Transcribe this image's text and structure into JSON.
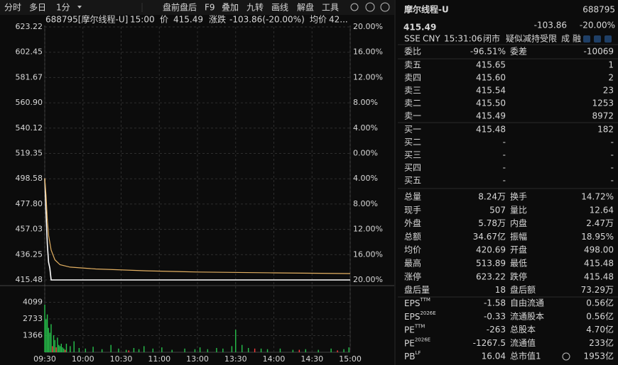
{
  "toolbar": {
    "left": [
      "分时",
      "多日",
      "1分"
    ],
    "right": [
      "盘前盘后",
      "F9",
      "叠加",
      "九转",
      "画线",
      "解盘",
      "工具"
    ]
  },
  "chart_header": {
    "symbol": "688795[摩尔线程-U]",
    "time": "15:00",
    "price_label": "价",
    "price": "415.49",
    "change_label": "涨跌",
    "change": "-103.86(-20.00%)",
    "avg_label": "均价",
    "avg": "42..."
  },
  "colors": {
    "up": "#ff3b3b",
    "down": "#27c24c",
    "neutral": "#dcdcdc",
    "muted": "#9a9a9a",
    "accent": "#3a9cf0"
  },
  "chart_data": {
    "type": "line",
    "grid": true,
    "xlim": [
      0,
      240
    ],
    "xticks": [
      {
        "value": 0,
        "label": "09:30"
      },
      {
        "value": 30,
        "label": "10:00"
      },
      {
        "value": 60,
        "label": "10:30"
      },
      {
        "value": 90,
        "label": "11:00"
      },
      {
        "value": 120,
        "label": "13:00"
      },
      {
        "value": 150,
        "label": "13:30"
      },
      {
        "value": 180,
        "label": "14:00"
      },
      {
        "value": 210,
        "label": "14:30"
      },
      {
        "value": 240,
        "label": "15:00"
      }
    ],
    "ylim": [
      415.48,
      623.22
    ],
    "yticks": [
      623.22,
      602.45,
      581.67,
      {
        "value": 560.9,
        "label": "560.90"
      },
      540.12,
      519.35,
      498.58,
      {
        "value": 477.8,
        "label": "477.80"
      },
      457.03,
      436.25,
      415.48
    ],
    "y2lim": [
      -20,
      20
    ],
    "y2ticks": [
      {
        "value": 20,
        "label": "20.00%"
      },
      {
        "value": 16,
        "label": "16.00%"
      },
      {
        "value": 12,
        "label": "12.00%"
      },
      {
        "value": 8,
        "label": "8.00%"
      },
      {
        "value": 4,
        "label": "4.00%"
      },
      {
        "value": 0,
        "label": "0.00%"
      },
      {
        "value": -4,
        "label": "4.00%"
      },
      {
        "value": -8,
        "label": "8.00%"
      },
      {
        "value": -12,
        "label": "12.00%"
      },
      {
        "value": -16,
        "label": "16.00%"
      },
      {
        "value": -20,
        "label": "20.00%"
      }
    ],
    "series": [
      {
        "color": "#ffffff",
        "x": [
          0,
          1,
          2,
          3,
          4,
          5,
          240
        ],
        "values": [
          499,
          470,
          445,
          430,
          425,
          415.49,
          415.49
        ]
      },
      {
        "color": "#e3b062",
        "x": [
          0,
          1,
          2,
          3,
          5,
          8,
          12,
          20,
          40,
          80,
          120,
          180,
          240
        ],
        "values": [
          499,
          485,
          465,
          452,
          440,
          432,
          428,
          426,
          424.5,
          423,
          422,
          421.3,
          420.69
        ]
      }
    ],
    "volume_lim": [
      0,
      5465
    ],
    "volume_ticks": [
      1366,
      2733,
      4099
    ],
    "volume_series": [
      {
        "color": "#27c24c",
        "x": [
          0,
          1,
          2,
          3,
          4,
          5,
          7,
          8,
          10,
          11,
          12,
          13,
          14,
          15,
          17,
          20,
          23,
          27,
          32,
          38,
          45,
          52,
          58,
          64,
          70,
          74,
          78,
          85,
          92,
          100,
          110,
          118,
          122,
          128,
          135,
          140,
          147,
          150,
          155,
          160,
          170,
          175,
          185,
          195,
          205,
          215,
          225,
          235,
          239
        ],
        "values": [
          3900,
          2700,
          3100,
          2000,
          1600,
          2300,
          1400,
          1000,
          1200,
          600,
          500,
          700,
          400,
          300,
          700,
          500,
          900,
          350,
          300,
          450,
          250,
          600,
          300,
          200,
          350,
          250,
          500,
          300,
          400,
          200,
          300,
          250,
          400,
          250,
          350,
          300,
          500,
          1850,
          600,
          350,
          300,
          250,
          300,
          200,
          250,
          200,
          300,
          250,
          400
        ]
      },
      {
        "color": "#ff3b3b",
        "x": [
          6,
          9,
          16,
          66,
          165,
          200,
          230
        ],
        "values": [
          500,
          400,
          200,
          150,
          300,
          200,
          150
        ]
      }
    ]
  },
  "quote": {
    "name": "摩尔线程-U",
    "code": "688795",
    "price": "415.49",
    "change": "-103.86",
    "change_pct": "-20.00%",
    "market": "SSE",
    "currency": "CNY",
    "time": "15:31:06",
    "status": "闭市",
    "flag": "疑似减持受限",
    "tags": [
      "成",
      "融"
    ]
  },
  "order_ratio": {
    "label": "委比",
    "value": "-96.51%",
    "label2": "委差",
    "value2": "-10069"
  },
  "asks": [
    {
      "label": "卖五",
      "price": "415.65",
      "volume": "1"
    },
    {
      "label": "卖四",
      "price": "415.60",
      "volume": "2"
    },
    {
      "label": "卖三",
      "price": "415.54",
      "volume": "23"
    },
    {
      "label": "卖二",
      "price": "415.50",
      "volume": "1253"
    },
    {
      "label": "卖一",
      "price": "415.49",
      "volume": "8972"
    }
  ],
  "bids": [
    {
      "label": "买一",
      "price": "415.48",
      "volume": "182"
    },
    {
      "label": "买二",
      "price": "-",
      "volume": "-"
    },
    {
      "label": "买三",
      "price": "-",
      "volume": "-"
    },
    {
      "label": "买四",
      "price": "-",
      "volume": "-"
    },
    {
      "label": "买五",
      "price": "-",
      "volume": "-"
    }
  ],
  "stats": [
    {
      "label": "总量",
      "value": "8.24万",
      "tone": "neutral",
      "label2": "换手",
      "value2": "14.72%",
      "tone2": "neutral"
    },
    {
      "label": "现手",
      "value": "507",
      "tone": "neutral",
      "label2": "量比",
      "value2": "12.64",
      "tone2": "neutral"
    },
    {
      "label": "外盘",
      "value": "5.78万",
      "tone": "up",
      "label2": "内盘",
      "value2": "2.47万",
      "tone2": "down"
    },
    {
      "label": "总额",
      "value": "34.67亿",
      "tone": "neutral",
      "label2": "振幅",
      "value2": "18.95%",
      "tone2": "neutral"
    },
    {
      "label": "均价",
      "value": "420.69",
      "tone": "down",
      "label2": "开盘",
      "value2": "498.00",
      "tone2": "down"
    },
    {
      "label": "最高",
      "value": "513.89",
      "tone": "down",
      "label2": "最低",
      "value2": "415.48",
      "tone2": "down"
    },
    {
      "label": "涨停",
      "value": "623.22",
      "tone": "up",
      "label2": "跌停",
      "value2": "415.48",
      "tone2": "down"
    },
    {
      "label": "盘后量",
      "value": "18",
      "tone": "neutral",
      "label2": "盘后额",
      "value2": "73.29万",
      "tone2": "neutral"
    }
  ],
  "fundamentals": [
    {
      "label": "EPS",
      "sup": "TTM",
      "value": "-1.58",
      "label2": "自由流通",
      "value2": "0.56亿"
    },
    {
      "label": "EPS",
      "sup": "2026E",
      "value": "-0.33",
      "label2": "流通股本",
      "value2": "0.56亿"
    },
    {
      "label": "PE",
      "sup": "TTM",
      "value": "-263",
      "label2": "总股本",
      "value2": "4.70亿"
    },
    {
      "label": "PE",
      "sup": "2026E",
      "value": "-1267.5",
      "label2": "流通值",
      "value2": "233亿"
    },
    {
      "label": "PB",
      "sup": "LF",
      "value": "16.04",
      "label2": "总市值1",
      "value2": "1953亿"
    }
  ]
}
